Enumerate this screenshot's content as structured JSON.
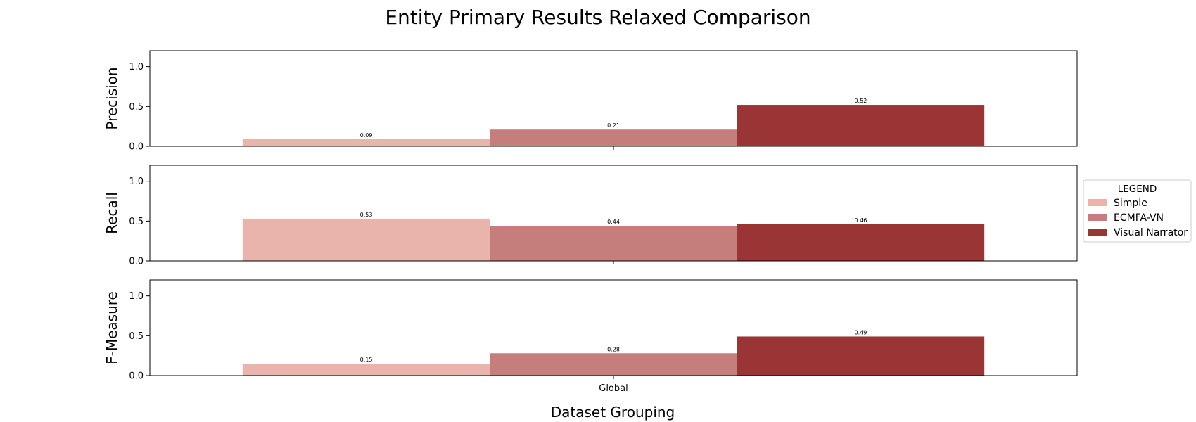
{
  "chart_data": {
    "type": "bar",
    "title": "Entity Primary Results Relaxed Comparison",
    "xlabel": "Dataset Grouping",
    "categories": [
      "Global"
    ],
    "ylim": [
      0,
      1.2
    ],
    "yticks": [
      0.0,
      0.5,
      1.0
    ],
    "ytick_labels": [
      "0.0",
      "0.5",
      "1.0"
    ],
    "grid": false,
    "legend": {
      "title": "LEGEND",
      "placement": "center-right outside",
      "entries": [
        "Simple",
        "ECMFA-VN",
        "Visual Narrator"
      ]
    },
    "colors": {
      "Simple": "#e8b4ac",
      "ECMFA-VN": "#c67e7c",
      "Visual Narrator": "#993535"
    },
    "panels": [
      {
        "ylabel": "Precision",
        "series": [
          {
            "name": "Simple",
            "values": [
              0.09
            ],
            "labels": [
              "0.09"
            ]
          },
          {
            "name": "ECMFA-VN",
            "values": [
              0.21
            ],
            "labels": [
              "0.21"
            ]
          },
          {
            "name": "Visual Narrator",
            "values": [
              0.52
            ],
            "labels": [
              "0.52"
            ]
          }
        ]
      },
      {
        "ylabel": "Recall",
        "series": [
          {
            "name": "Simple",
            "values": [
              0.53
            ],
            "labels": [
              "0.53"
            ]
          },
          {
            "name": "ECMFA-VN",
            "values": [
              0.44
            ],
            "labels": [
              "0.44"
            ]
          },
          {
            "name": "Visual Narrator",
            "values": [
              0.46
            ],
            "labels": [
              "0.46"
            ]
          }
        ]
      },
      {
        "ylabel": "F-Measure",
        "series": [
          {
            "name": "Simple",
            "values": [
              0.15
            ],
            "labels": [
              "0.15"
            ]
          },
          {
            "name": "ECMFA-VN",
            "values": [
              0.28
            ],
            "labels": [
              "0.28"
            ]
          },
          {
            "name": "Visual Narrator",
            "values": [
              0.49
            ],
            "labels": [
              "0.49"
            ]
          }
        ]
      }
    ]
  }
}
